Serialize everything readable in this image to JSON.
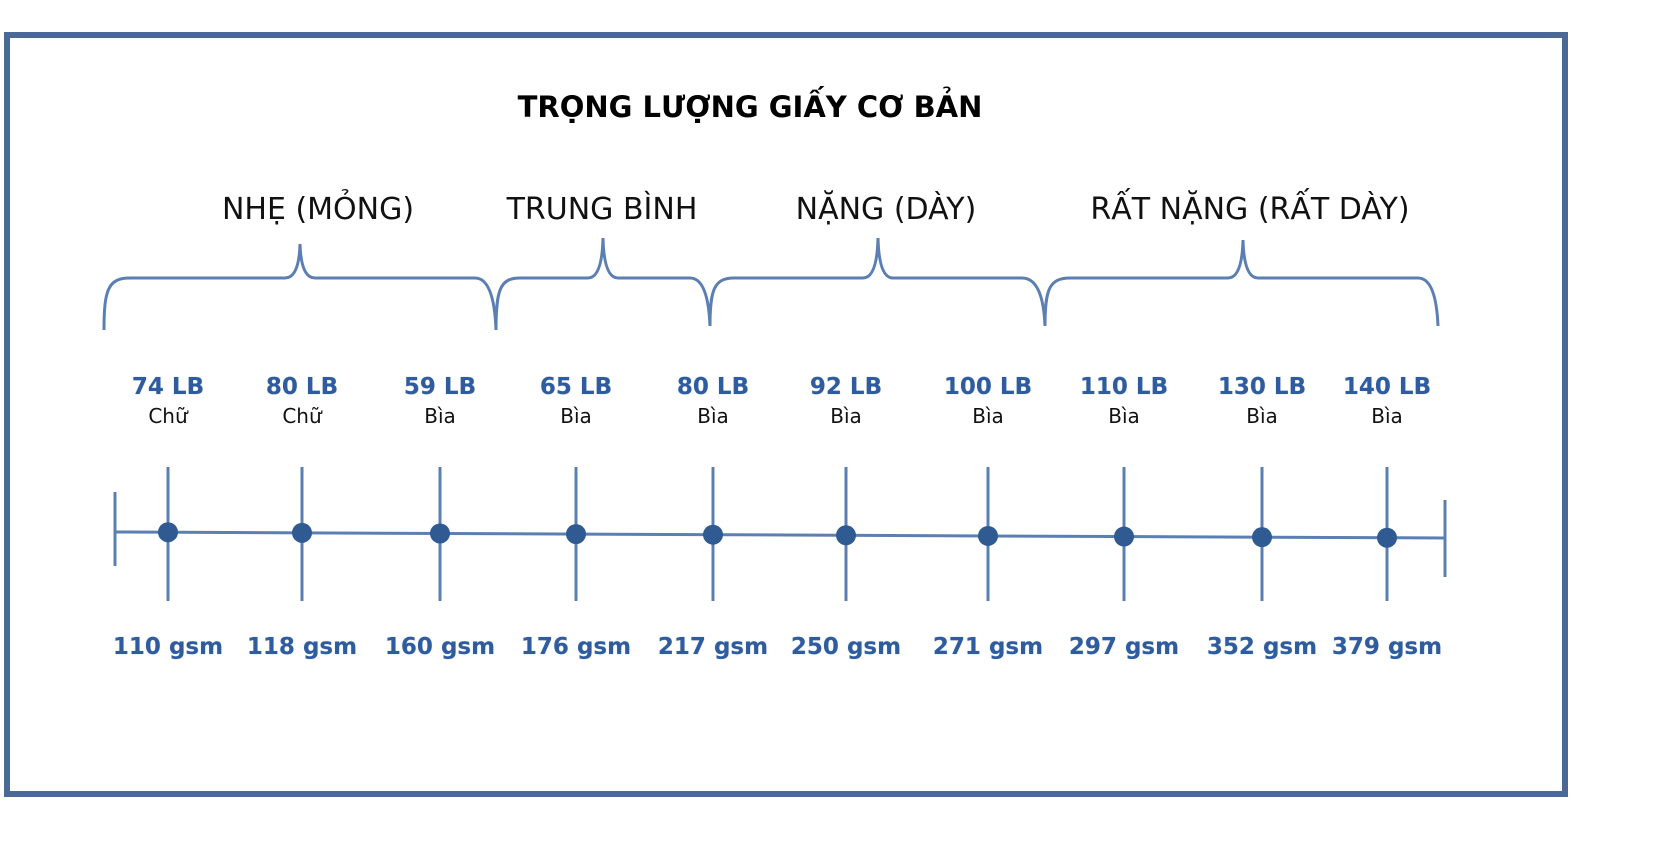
{
  "title": "TRỌNG LƯỢNG GIẤY CƠ BẢN",
  "groups": [
    {
      "label": "NHẸ (MỎNG)"
    },
    {
      "label": "TRUNG BÌNH"
    },
    {
      "label": "NẶNG (DÀY)"
    },
    {
      "label": "RẤT NẶNG (RẤT DÀY)"
    }
  ],
  "points": [
    {
      "lb": "74 LB",
      "kind": "Chữ",
      "gsm": "110 gsm"
    },
    {
      "lb": "80 LB",
      "kind": "Chữ",
      "gsm": "118 gsm"
    },
    {
      "lb": "59 LB",
      "kind": "Bìa",
      "gsm": "160 gsm"
    },
    {
      "lb": "65 LB",
      "kind": "Bìa",
      "gsm": "176 gsm"
    },
    {
      "lb": "80 LB",
      "kind": "Bìa",
      "gsm": "217 gsm"
    },
    {
      "lb": "92 LB",
      "kind": "Bìa",
      "gsm": "250 gsm"
    },
    {
      "lb": "100 LB",
      "kind": "Bìa",
      "gsm": "271 gsm"
    },
    {
      "lb": "110 LB",
      "kind": "Bìa",
      "gsm": "297 gsm"
    },
    {
      "lb": "130 LB",
      "kind": "Bìa",
      "gsm": "352 gsm"
    },
    {
      "lb": "140 LB",
      "kind": "Bìa",
      "gsm": "379 gsm"
    }
  ],
  "colors": {
    "frame": "#4a6a95",
    "line": "#5b7fb3",
    "dot": "#2f5a92",
    "value_text": "#2e5c9e"
  }
}
